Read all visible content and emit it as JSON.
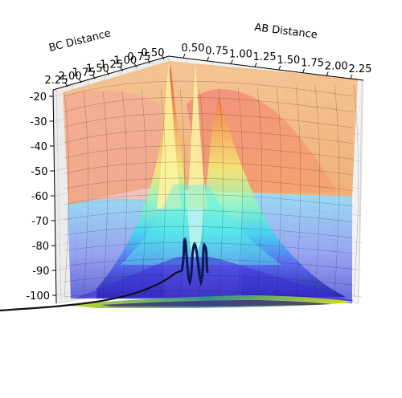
{
  "chart_data": {
    "type": "surface3d",
    "title": "",
    "xlabel": "AB Distance",
    "ylabel": "BC Distance",
    "zlabel": "",
    "x_ticks": [
      "0.50",
      "0.75",
      "1.00",
      "1.25",
      "1.50",
      "1.75",
      "2.00",
      "2.25"
    ],
    "y_ticks": [
      "0.50",
      "0.75",
      "1.00",
      "1.25",
      "1.50",
      "1.75",
      "2.00",
      "2.25"
    ],
    "z_ticks": [
      "-20",
      "-30",
      "-40",
      "-50",
      "-60",
      "-70",
      "-80",
      "-90",
      "-100"
    ],
    "xlim": [
      0.5,
      2.25
    ],
    "ylim": [
      0.5,
      2.25
    ],
    "zlim": [
      -105,
      -20
    ],
    "colormap": "jet",
    "contour_colormap": "viridis",
    "grid": true
  }
}
